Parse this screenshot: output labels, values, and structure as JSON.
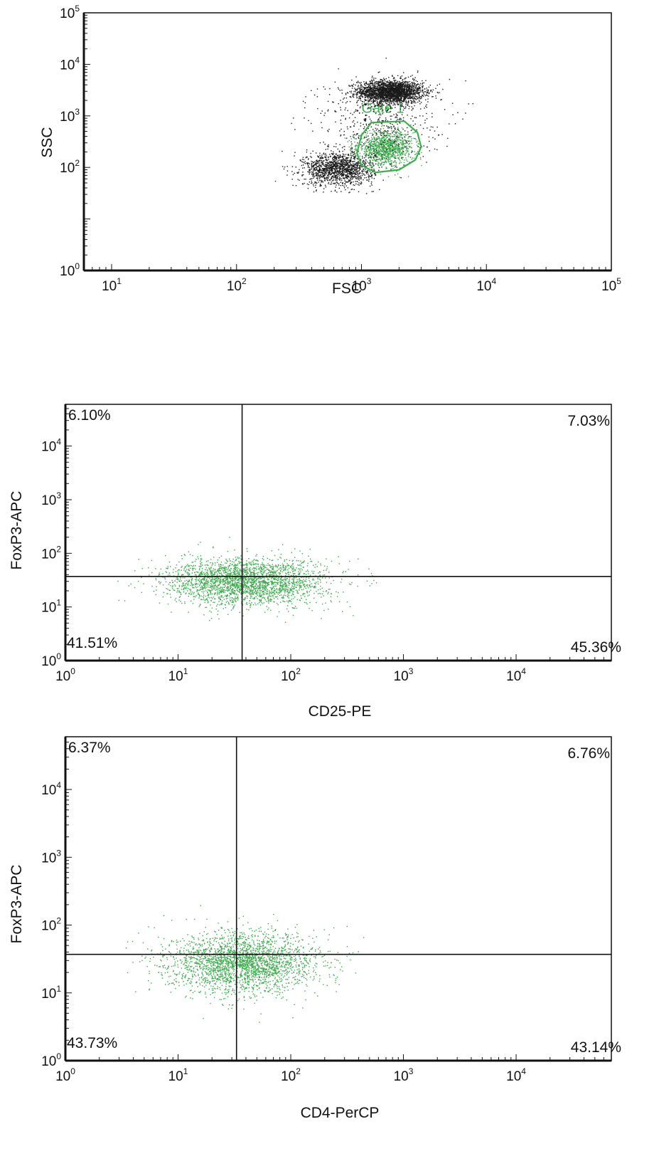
{
  "colors": {
    "dots_dark": "#1a1a1a",
    "dots_green": "#3aa84a",
    "gate": "#3cae4c",
    "axis": "#111111",
    "background": "#ffffff"
  },
  "chart_data": [
    {
      "type": "scatter",
      "title": "",
      "xlabel": "FSC",
      "ylabel": "SSC",
      "xscale": "log",
      "yscale": "log",
      "xlim": [
        6,
        100000
      ],
      "ylim": [
        1,
        100000
      ],
      "x_ticks": [
        "10|1",
        "10|2",
        "10|3",
        "10|4",
        "10|5"
      ],
      "y_ticks": [
        "10|0",
        "10|2",
        "10|3",
        "10|4",
        "10|5"
      ],
      "gate": {
        "label": "Gate 1",
        "polygon": [
          [
            1200,
            740
          ],
          [
            2200,
            790
          ],
          [
            2800,
            480
          ],
          [
            3000,
            250
          ],
          [
            2700,
            140
          ],
          [
            2000,
            90
          ],
          [
            1300,
            80
          ],
          [
            1000,
            110
          ],
          [
            920,
            190
          ],
          [
            1000,
            420
          ]
        ]
      },
      "populations": [
        {
          "name": "",
          "center": [
            1700,
            3000
          ],
          "spread": [
            0.13,
            0.11
          ],
          "count": 2400,
          "color": "dark"
        },
        {
          "name": "",
          "center": [
            1550,
            240
          ],
          "spread": [
            0.11,
            0.16
          ],
          "count": 1100,
          "color": "green"
        },
        {
          "name": "",
          "center": [
            650,
            95
          ],
          "spread": [
            0.14,
            0.16
          ],
          "count": 1400,
          "color": "dark"
        },
        {
          "name": "",
          "center": [
            1400,
            900
          ],
          "spread": [
            0.25,
            0.4
          ],
          "count": 500,
          "color": "dark"
        }
      ]
    },
    {
      "type": "scatter",
      "title": "",
      "xlabel": "CD25-PE",
      "ylabel": "FoxP3-APC",
      "xscale": "log",
      "yscale": "log",
      "xlim": [
        1,
        70000
      ],
      "ylim": [
        1,
        60000
      ],
      "x_ticks": [
        "10|0",
        "10|1",
        "10|2",
        "10|3",
        "10|4"
      ],
      "y_ticks": [
        "10|0",
        "10|1",
        "10|2",
        "10|3",
        "10|4"
      ],
      "quadrant_x": 37,
      "quadrant_y": 37,
      "quadrants": {
        "upper_left": "6.10%",
        "upper_right": "7.03%",
        "lower_left": "41.51%",
        "lower_right": "45.36%"
      },
      "populations": [
        {
          "name": "",
          "center": [
            40,
            30
          ],
          "spread": [
            0.35,
            0.22
          ],
          "count": 2600,
          "color": "green"
        }
      ]
    },
    {
      "type": "scatter",
      "title": "",
      "xlabel": "CD4-PerCP",
      "ylabel": "FoxP3-APC",
      "xscale": "log",
      "yscale": "log",
      "xlim": [
        1,
        70000
      ],
      "ylim": [
        1,
        60000
      ],
      "x_ticks": [
        "10|0",
        "10|1",
        "10|2",
        "10|3",
        "10|4"
      ],
      "y_ticks": [
        "10|0",
        "10|1",
        "10|2",
        "10|3",
        "10|4"
      ],
      "quadrant_x": 33,
      "quadrant_y": 37,
      "quadrants": {
        "upper_left": "6.37%",
        "upper_right": "6.76%",
        "lower_left": "43.73%",
        "lower_right": "43.14%"
      },
      "populations": [
        {
          "name": "",
          "center": [
            38,
            28
          ],
          "spread": [
            0.33,
            0.22
          ],
          "count": 2600,
          "color": "green"
        }
      ]
    }
  ]
}
